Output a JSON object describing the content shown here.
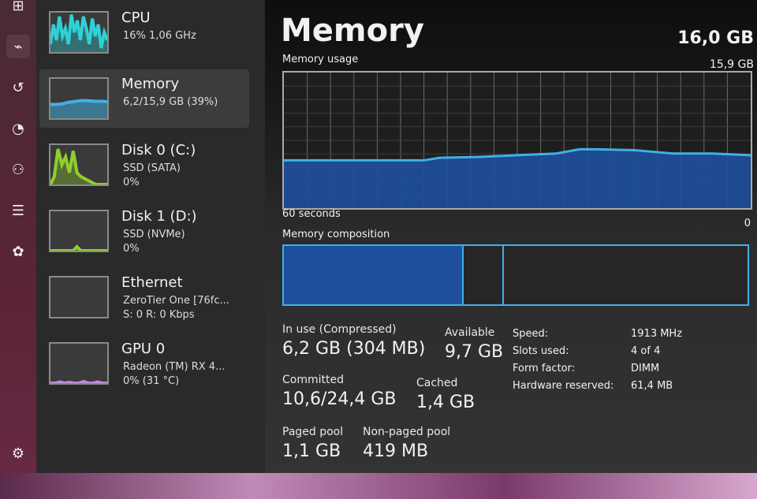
{
  "sidebar": {
    "icons": [
      "processes-icon",
      "performance-icon",
      "app-history-icon",
      "startup-icon",
      "users-icon",
      "details-icon",
      "services-icon",
      "settings-icon"
    ],
    "selected": "performance-icon"
  },
  "nav": {
    "items": [
      {
        "title": "CPU",
        "sub": "16% 1,06 GHz",
        "sub2": "",
        "color": "#2fd0d8",
        "graph": [
          0.2,
          0.7,
          0.3,
          0.9,
          0.4,
          0.6,
          0.2,
          0.95,
          0.5,
          0.8,
          0.3,
          0.9,
          0.6,
          0.2,
          0.85,
          0.4,
          0.7,
          0.1,
          0.5,
          0.3
        ]
      },
      {
        "title": "Memory",
        "sub": "6,2/15,9 GB (39%)",
        "sub2": "",
        "color": "#3fb1e6",
        "graph": [
          0.35,
          0.35,
          0.36,
          0.4,
          0.42,
          0.44,
          0.45,
          0.44,
          0.43,
          0.43,
          0.42
        ],
        "selected": true
      },
      {
        "title": "Disk 0 (C:)",
        "sub": "SSD (SATA)",
        "sub2": "0%",
        "color": "#8fd02a",
        "graph": [
          0,
          0.2,
          0.9,
          0.5,
          0.7,
          0.3,
          0.85,
          0.3,
          0.2,
          0.15,
          0.1,
          0.05,
          0,
          0,
          0,
          0
        ]
      },
      {
        "title": "Disk 1 (D:)",
        "sub": "SSD (NVMe)",
        "sub2": "0%",
        "color": "#8fd02a",
        "graph": [
          0,
          0,
          0,
          0,
          0,
          0,
          0,
          0.1,
          0,
          0,
          0,
          0,
          0,
          0,
          0,
          0
        ]
      },
      {
        "title": "Ethernet",
        "sub": "ZeroTier One [76fc...",
        "sub2": "S: 0 R: 0 Kbps",
        "color": "#c08ad8",
        "graph": []
      },
      {
        "title": "GPU 0",
        "sub": "Radeon (TM) RX 4...",
        "sub2": "0% (31 °C)",
        "color": "#c08ad8",
        "graph": [
          0,
          0,
          0.03,
          0,
          0.02,
          0,
          0,
          0.04,
          0,
          0,
          0.03,
          0,
          0
        ]
      }
    ]
  },
  "main": {
    "title": "Memory",
    "total": "16,0 GB",
    "usage_label": "Memory usage",
    "usage_max": "15,9 GB",
    "time_label": "60 seconds",
    "zero_label": "0",
    "composition_label": "Memory composition",
    "composition": [
      {
        "name": "in-use",
        "fraction": 0.387,
        "color": "#1d4f9c"
      },
      {
        "name": "modified",
        "fraction": 0.088,
        "color": "#262626"
      },
      {
        "name": "standby",
        "fraction": 0.525,
        "color": "#262626"
      }
    ],
    "stats": {
      "in_use": {
        "label": "In use (Compressed)",
        "value": "6,2 GB (304 MB)"
      },
      "available": {
        "label": "Available",
        "value": "9,7 GB"
      },
      "committed": {
        "label": "Committed",
        "value": "10,6/24,4 GB"
      },
      "cached": {
        "label": "Cached",
        "value": "1,4 GB"
      },
      "paged_pool": {
        "label": "Paged pool",
        "value": "1,1 GB"
      },
      "non_paged_pool": {
        "label": "Non-paged pool",
        "value": "419 MB"
      }
    },
    "details": [
      {
        "key": "Speed:",
        "value": "1913 MHz"
      },
      {
        "key": "Slots used:",
        "value": "4 of 4"
      },
      {
        "key": "Form factor:",
        "value": "DIMM"
      },
      {
        "key": "Hardware reserved:",
        "value": "61,4 MB"
      }
    ]
  },
  "chart_data": {
    "type": "area",
    "title": "Memory usage",
    "xlabel": "60 seconds",
    "ylim": [
      0,
      15.9
    ],
    "xlim": [
      60,
      0
    ],
    "x": [
      60,
      55,
      50,
      45,
      42,
      40,
      35,
      30,
      25,
      22,
      20,
      15,
      10,
      5,
      0
    ],
    "values": [
      5.6,
      5.6,
      5.6,
      5.6,
      5.6,
      5.9,
      6.0,
      6.2,
      6.4,
      6.9,
      6.9,
      6.8,
      6.4,
      6.4,
      6.2
    ],
    "color": "#3fb1e6",
    "fill": "#1d4f9c",
    "grid": true
  }
}
